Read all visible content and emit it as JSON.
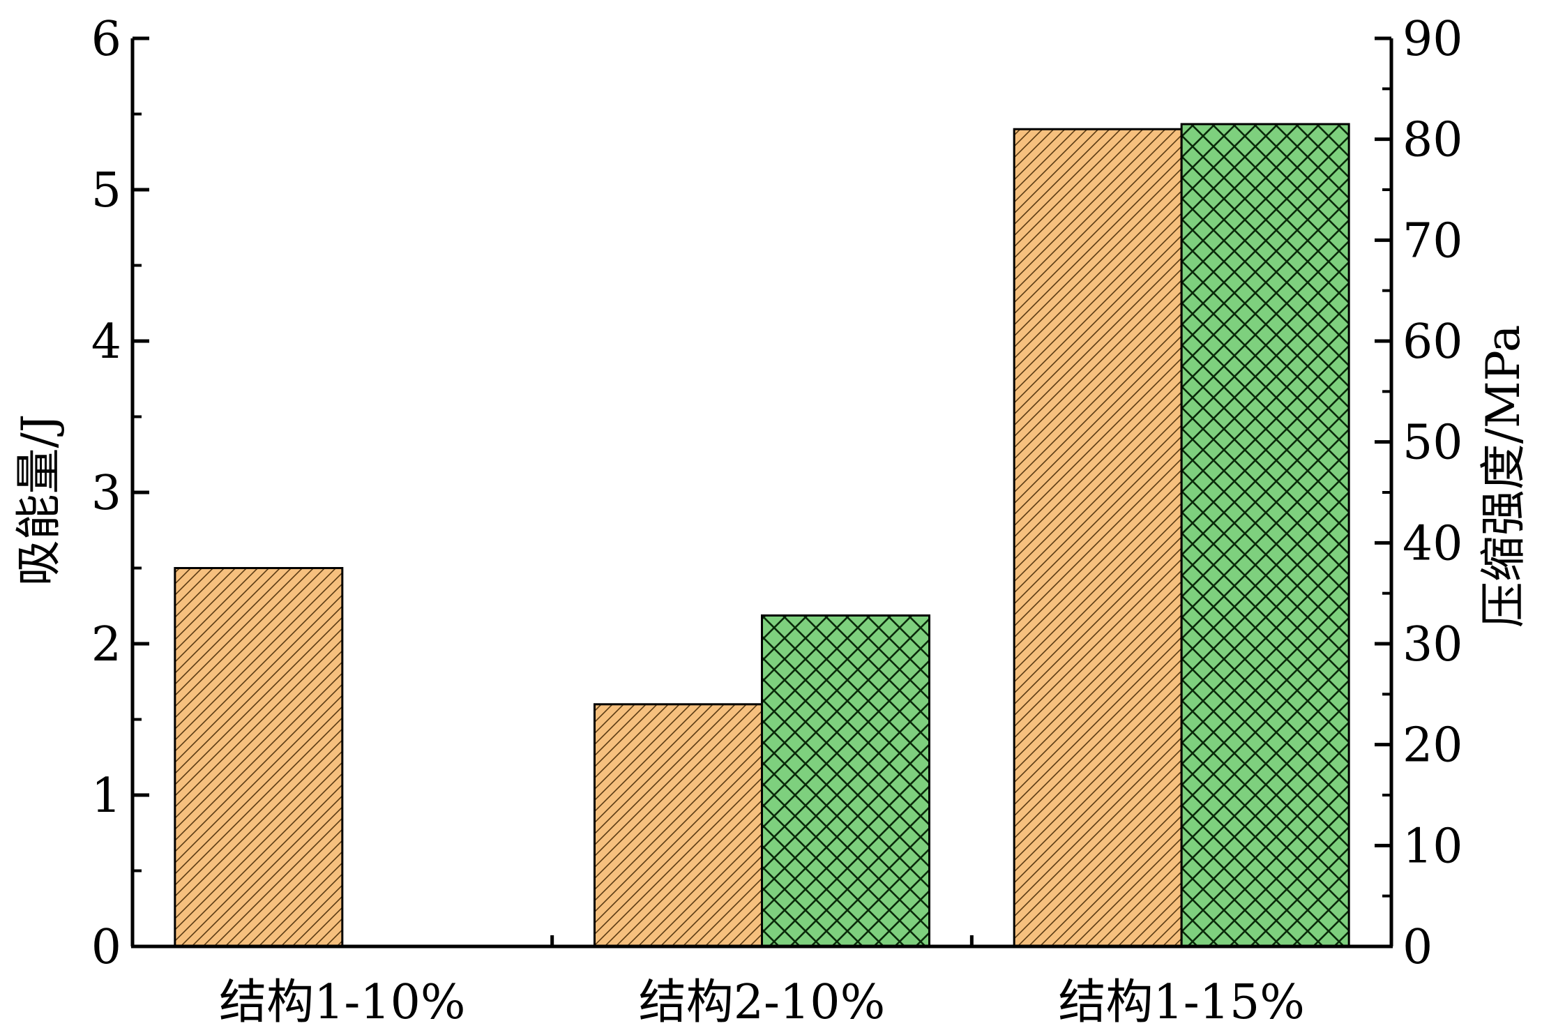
{
  "chart_data": {
    "type": "bar",
    "categories": [
      "结构1-10%",
      "结构2-10%",
      "结构1-15%"
    ],
    "series": [
      {
        "axis": "left",
        "values": [
          2.5,
          1.6,
          5.4
        ],
        "color": "#f6c07e",
        "pattern": "diagonal-hatch"
      },
      {
        "axis": "right",
        "values": [
          null,
          32.8,
          81.5
        ],
        "color": "#7ed07e",
        "pattern": "crosshatch"
      }
    ],
    "ylabel": "吸能量/J",
    "ylabel_right": "压缩强度/MPa",
    "ylim": [
      0,
      6
    ],
    "ylim_right": [
      0,
      90
    ],
    "yticks": [
      0,
      1,
      2,
      3,
      4,
      5,
      6
    ],
    "yticks_right": [
      0,
      10,
      20,
      30,
      40,
      50,
      60,
      70,
      80,
      90
    ],
    "grid": false,
    "legend": "none"
  }
}
